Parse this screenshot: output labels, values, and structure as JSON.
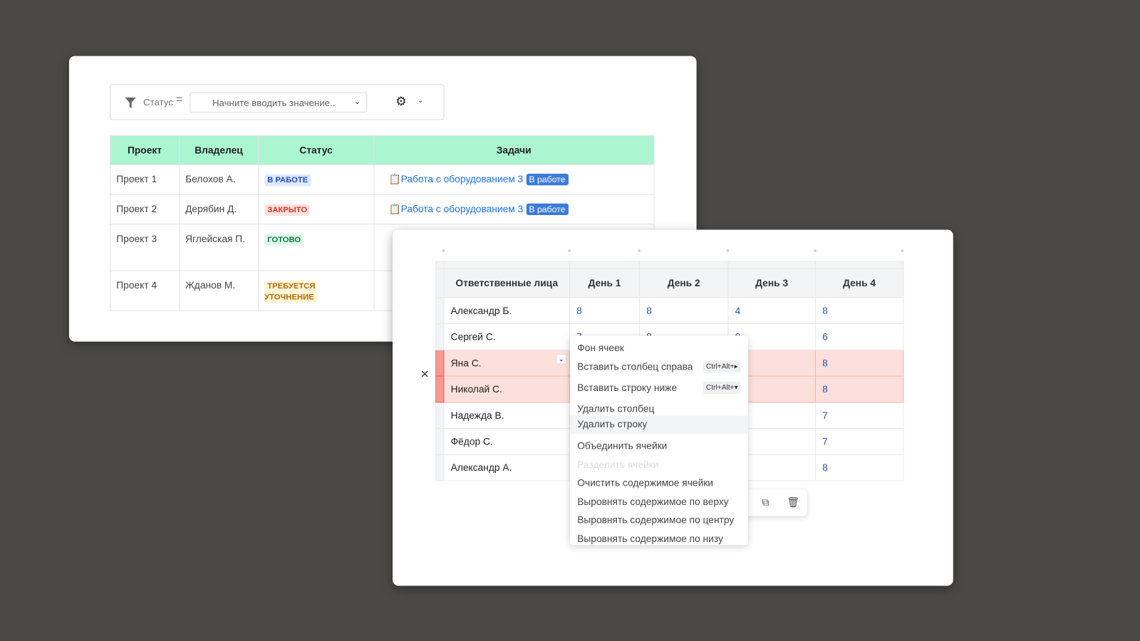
{
  "filter": {
    "field_label": "Статус",
    "operator": "=",
    "placeholder": "Начните вводить значение..",
    "icons": [
      "filter-icon",
      "gear-icon",
      "chevron-down-icon"
    ]
  },
  "projects_table": {
    "headers": [
      "Проект",
      "Владелец",
      "Статус",
      "Задачи"
    ],
    "rows": [
      {
        "project": "Проект 1",
        "owner": "Белохов А.",
        "status": "В РАБОТЕ",
        "task": "Работа с оборудованием 3",
        "task_status": "В работе"
      },
      {
        "project": "Проект 2",
        "owner": "Дерябин Д.",
        "status": "ЗАКРЫТО",
        "task": "Работа с оборудованием 3",
        "task_status": "В работе"
      },
      {
        "project": "Проект 3",
        "owner": "Яглейская П.",
        "status": "ГОТОВО"
      },
      {
        "project": "Проект 4",
        "owner": "Жданов М.",
        "status": "ТРЕБУЕТСЯ УТОЧНЕНИЕ"
      }
    ],
    "colors": {
      "header_bg": "#abf5d1",
      "in_work": "#1f4fbf",
      "closed": "#e0301e",
      "done": "#137a3b",
      "clarify": "#b36b00",
      "task_link": "#1a73e8"
    }
  },
  "hours_table": {
    "headers": [
      "Ответственные лица",
      "День 1",
      "День 2",
      "День 3",
      "День 4"
    ],
    "rows": [
      {
        "name": "Александр Б.",
        "d1": "8",
        "d2": "8",
        "d3": "4",
        "d4": "8"
      },
      {
        "name": "Сергей С.",
        "d1": "7",
        "d2": "8",
        "d3": "8",
        "d4": "6"
      },
      {
        "name": "Яна С.",
        "d4": "8",
        "selected": true
      },
      {
        "name": "Николай С.",
        "d4": "8",
        "selected": true
      },
      {
        "name": "Надежда В.",
        "d4": "7"
      },
      {
        "name": "Фёдор С.",
        "d4": "7"
      },
      {
        "name": "Александр А.",
        "d4": "8"
      }
    ],
    "selection_color": "#fde0db"
  },
  "context_menu": {
    "items": [
      {
        "label": "Фон ячеек"
      },
      {
        "label": "Вставить столбец справа",
        "shortcut": "Ctrl+Alt+▸"
      },
      {
        "label": "Вставить строку ниже",
        "shortcut": "Ctrl+Alt+▾"
      },
      {
        "label": "Удалить столбец"
      },
      {
        "label": "Удалить строку",
        "hovered": true
      },
      {
        "label": "Объединить ячейки"
      },
      {
        "label": "Разделить ячейки",
        "disabled": true
      },
      {
        "label": "Очистить содержимое ячейки"
      },
      {
        "label": "Выровнять содержимое по верху"
      },
      {
        "label": "Выровнять содержимое по центру"
      },
      {
        "label": "Выровнять содержимое по низу"
      }
    ]
  },
  "table_toolbar": {
    "icons": [
      "chevron-right-icon",
      "copy-icon",
      "trash-icon"
    ]
  }
}
